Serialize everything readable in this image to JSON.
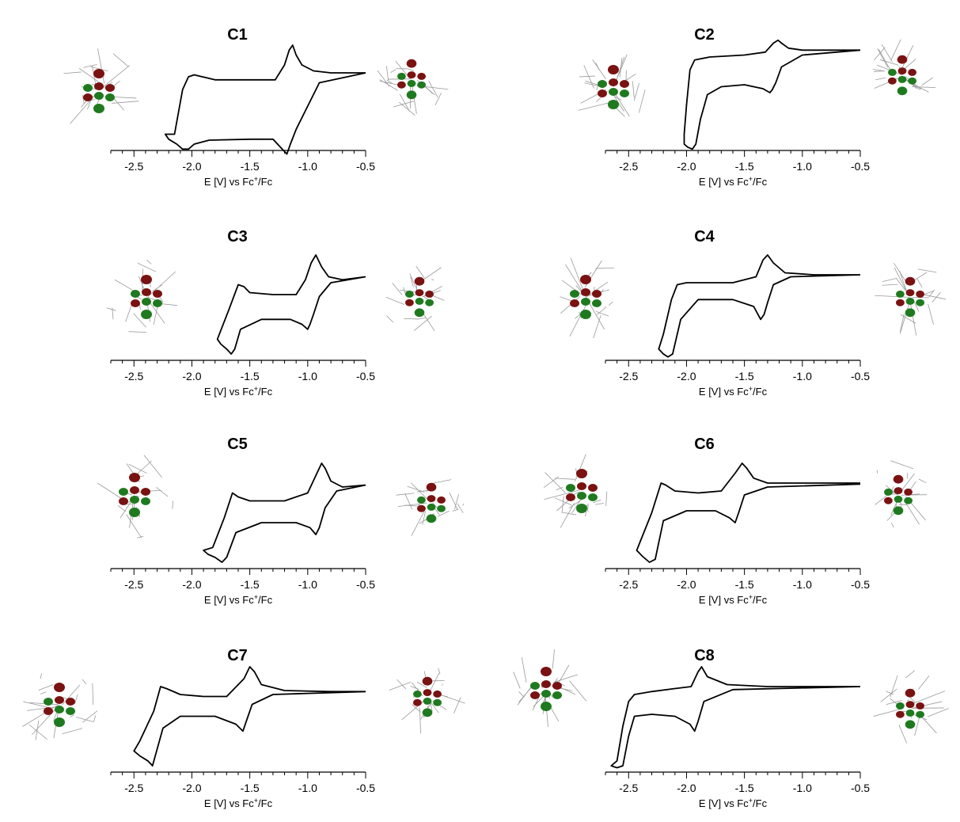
{
  "chart_data": [
    {
      "type": "line",
      "title": "C1",
      "xlabel": "E [V] vs Fc+/Fc",
      "xlim": [
        -2.7,
        -0.5
      ],
      "x_ticks": [
        "-2.5",
        "-2.0",
        "-1.5",
        "-1.0",
        "-0.5"
      ],
      "y_axis_visible": false,
      "grid": false,
      "series": [
        {
          "x": [
            -0.5,
            -0.8,
            -0.95,
            -1.05,
            -1.1,
            -1.13,
            -1.16,
            -1.2,
            -1.28,
            -1.5,
            -1.8,
            -1.98,
            -2.03,
            -2.08,
            -2.15,
            -2.23,
            -2.2,
            -2.13,
            -2.08,
            -2.03,
            -1.98,
            -1.85,
            -1.5,
            -1.3,
            -1.22,
            -1.18,
            -1.15,
            -1.1,
            -0.9,
            -0.5
          ],
          "y": [
            0.72,
            0.72,
            0.74,
            0.8,
            0.9,
            1.0,
            0.95,
            0.8,
            0.65,
            0.65,
            0.65,
            0.7,
            0.68,
            0.55,
            0.1,
            0.1,
            0.05,
            0.0,
            -0.05,
            -0.05,
            0.0,
            0.04,
            0.05,
            0.05,
            -0.05,
            -0.1,
            0.0,
            0.15,
            0.62,
            0.72
          ]
        }
      ],
      "inset_left": "HOMO isosurface (red/green lobes) on wireframe",
      "inset_right": "LUMO isosurface (red/green lobes) on wireframe"
    },
    {
      "type": "line",
      "title": "C2",
      "xlabel": "E [V] vs Fc+/Fc",
      "xlim": [
        -2.7,
        -0.5
      ],
      "x_ticks": [
        "-2.5",
        "-2.0",
        "-1.5",
        "-1.0",
        "-0.5"
      ],
      "y_axis_visible": false,
      "grid": false,
      "series": [
        {
          "x": [
            -0.5,
            -0.8,
            -1.0,
            -1.12,
            -1.18,
            -1.21,
            -1.25,
            -1.32,
            -1.5,
            -1.8,
            -1.93,
            -1.97,
            -2.0,
            -2.02,
            -2.02,
            -1.99,
            -1.95,
            -1.92,
            -1.88,
            -1.82,
            -1.7,
            -1.5,
            -1.34,
            -1.28,
            -1.26,
            -1.23,
            -1.18,
            -1.0,
            -0.5
          ],
          "y": [
            0.95,
            0.95,
            0.95,
            0.97,
            1.02,
            1.05,
            1.02,
            0.93,
            0.9,
            0.88,
            0.85,
            0.75,
            0.4,
            0.1,
            0.0,
            -0.03,
            -0.05,
            0.0,
            0.25,
            0.5,
            0.58,
            0.6,
            0.56,
            0.52,
            0.55,
            0.62,
            0.78,
            0.9,
            0.95
          ]
        }
      ],
      "inset_left": "HOMO isosurface (red/green lobes) on wireframe",
      "inset_right": "LUMO isosurface (red/green lobes) on wireframe"
    },
    {
      "type": "line",
      "title": "C3",
      "xlabel": "E [V] vs Fc+/Fc",
      "xlim": [
        -2.7,
        -0.5
      ],
      "x_ticks": [
        "-2.5",
        "-2.0",
        "-1.5",
        "-1.0",
        "-0.5"
      ],
      "y_axis_visible": false,
      "grid": false,
      "series": [
        {
          "x": [
            -0.5,
            -0.7,
            -0.82,
            -0.88,
            -0.93,
            -0.97,
            -1.02,
            -1.1,
            -1.3,
            -1.5,
            -1.55,
            -1.6,
            -1.68,
            -1.78,
            -1.75,
            -1.7,
            -1.66,
            -1.63,
            -1.58,
            -1.4,
            -1.15,
            -1.05,
            -1.0,
            -0.98,
            -0.95,
            -0.9,
            -0.8,
            -0.5
          ],
          "y": [
            0.78,
            0.75,
            0.78,
            0.88,
            1.0,
            0.92,
            0.75,
            0.6,
            0.6,
            0.62,
            0.68,
            0.7,
            0.45,
            0.15,
            0.1,
            0.05,
            0.0,
            0.05,
            0.25,
            0.35,
            0.35,
            0.3,
            0.25,
            0.3,
            0.4,
            0.58,
            0.72,
            0.78
          ]
        }
      ],
      "inset_left": "HOMO isosurface (red/green lobes) on wireframe",
      "inset_right": "LUMO isosurface (red/green lobes) on wireframe"
    },
    {
      "type": "line",
      "title": "C4",
      "xlabel": "E [V] vs Fc+/Fc",
      "xlim": [
        -2.7,
        -0.5
      ],
      "x_ticks": [
        "-2.5",
        "-2.0",
        "-1.5",
        "-1.0",
        "-0.5"
      ],
      "y_axis_visible": false,
      "grid": false,
      "series": [
        {
          "x": [
            -0.5,
            -0.9,
            -1.15,
            -1.25,
            -1.3,
            -1.34,
            -1.4,
            -1.6,
            -1.8,
            -2.0,
            -2.08,
            -2.13,
            -2.2,
            -2.24,
            -2.2,
            -2.16,
            -2.12,
            -2.05,
            -1.9,
            -1.6,
            -1.42,
            -1.36,
            -1.33,
            -1.3,
            -1.25,
            -1.1,
            -0.5
          ],
          "y": [
            0.8,
            0.8,
            0.82,
            0.92,
            1.0,
            0.95,
            0.78,
            0.72,
            0.72,
            0.72,
            0.7,
            0.55,
            0.2,
            0.05,
            0.0,
            -0.03,
            0.0,
            0.35,
            0.55,
            0.55,
            0.48,
            0.35,
            0.4,
            0.52,
            0.7,
            0.78,
            0.8
          ]
        }
      ],
      "inset_left": "HOMO isosurface (red/green lobes) on wireframe",
      "inset_right": "LUMO isosurface (red/green lobes) on wireframe"
    },
    {
      "type": "line",
      "title": "C5",
      "xlabel": "E [V] vs Fc+/Fc",
      "xlim": [
        -2.7,
        -0.5
      ],
      "x_ticks": [
        "-2.5",
        "-2.0",
        "-1.5",
        "-1.0",
        "-0.5"
      ],
      "y_axis_visible": false,
      "grid": false,
      "series": [
        {
          "x": [
            -0.5,
            -0.7,
            -0.8,
            -0.85,
            -0.88,
            -0.92,
            -1.0,
            -1.2,
            -1.5,
            -1.6,
            -1.65,
            -1.72,
            -1.82,
            -1.9,
            -1.86,
            -1.8,
            -1.74,
            -1.7,
            -1.62,
            -1.4,
            -1.1,
            -0.98,
            -0.93,
            -0.9,
            -0.85,
            -0.75,
            -0.5
          ],
          "y": [
            0.78,
            0.76,
            0.82,
            0.95,
            1.0,
            0.9,
            0.7,
            0.62,
            0.62,
            0.66,
            0.7,
            0.45,
            0.15,
            0.12,
            0.08,
            0.05,
            0.0,
            0.05,
            0.3,
            0.4,
            0.4,
            0.35,
            0.28,
            0.35,
            0.55,
            0.72,
            0.78
          ]
        }
      ],
      "inset_left": "HOMO isosurface (red/green lobes) on wireframe",
      "inset_right": "LUMO isosurface (red/green lobes) on wireframe"
    },
    {
      "type": "line",
      "title": "C6",
      "xlabel": "E [V] vs Fc+/Fc",
      "xlim": [
        -2.7,
        -0.5
      ],
      "x_ticks": [
        "-2.5",
        "-2.0",
        "-1.5",
        "-1.0",
        "-0.5"
      ],
      "y_axis_visible": false,
      "grid": false,
      "series": [
        {
          "x": [
            -0.5,
            -0.9,
            -1.3,
            -1.42,
            -1.48,
            -1.52,
            -1.58,
            -1.7,
            -1.9,
            -2.1,
            -2.18,
            -2.22,
            -2.3,
            -2.43,
            -2.38,
            -2.32,
            -2.27,
            -2.2,
            -2.0,
            -1.75,
            -1.63,
            -1.58,
            -1.55,
            -1.5,
            -1.3,
            -0.5
          ],
          "y": [
            0.8,
            0.8,
            0.8,
            0.85,
            0.95,
            1.0,
            0.9,
            0.72,
            0.7,
            0.72,
            0.78,
            0.8,
            0.5,
            0.12,
            0.06,
            0.0,
            0.03,
            0.42,
            0.52,
            0.52,
            0.45,
            0.4,
            0.5,
            0.68,
            0.76,
            0.79
          ]
        }
      ],
      "inset_left": "HOMO isosurface (red/green lobes) on wireframe",
      "inset_right": "LUMO isosurface (red/green lobes) on wireframe"
    },
    {
      "type": "line",
      "title": "C7",
      "xlabel": "E [V] vs Fc+/Fc",
      "xlim": [
        -2.7,
        -0.5
      ],
      "x_ticks": [
        "-2.5",
        "-2.0",
        "-1.5",
        "-1.0",
        "-0.5"
      ],
      "y_axis_visible": false,
      "grid": false,
      "series": [
        {
          "x": [
            -0.5,
            -0.8,
            -1.2,
            -1.4,
            -1.46,
            -1.5,
            -1.55,
            -1.7,
            -1.9,
            -2.1,
            -2.22,
            -2.27,
            -2.33,
            -2.45,
            -2.5,
            -2.45,
            -2.38,
            -2.34,
            -2.25,
            -2.1,
            -1.8,
            -1.62,
            -1.56,
            -1.53,
            -1.48,
            -1.3,
            -0.5
          ],
          "y": [
            0.75,
            0.75,
            0.76,
            0.82,
            0.95,
            1.0,
            0.88,
            0.7,
            0.7,
            0.72,
            0.78,
            0.8,
            0.55,
            0.25,
            0.15,
            0.1,
            0.05,
            0.0,
            0.38,
            0.5,
            0.5,
            0.42,
            0.35,
            0.45,
            0.62,
            0.72,
            0.75
          ]
        }
      ],
      "inset_left": "HOMO isosurface (red/green lobes) on wireframe",
      "inset_right": "LUMO isosurface (red/green lobes) on wireframe"
    },
    {
      "type": "line",
      "title": "C8",
      "xlabel": "E [V] vs Fc+/Fc",
      "xlim": [
        -2.7,
        -0.5
      ],
      "x_ticks": [
        "-2.5",
        "-2.0",
        "-1.5",
        "-1.0",
        "-0.5"
      ],
      "y_axis_visible": false,
      "grid": false,
      "series": [
        {
          "x": [
            -0.5,
            -0.9,
            -1.3,
            -1.65,
            -1.82,
            -1.87,
            -1.9,
            -1.96,
            -2.1,
            -2.3,
            -2.45,
            -2.5,
            -2.55,
            -2.6,
            -2.65,
            -2.6,
            -2.55,
            -2.5,
            -2.45,
            -2.3,
            -2.1,
            -1.97,
            -1.93,
            -1.9,
            -1.85,
            -1.6,
            -0.5
          ],
          "y": [
            0.8,
            0.8,
            0.8,
            0.82,
            0.9,
            1.0,
            0.95,
            0.8,
            0.78,
            0.75,
            0.72,
            0.65,
            0.4,
            0.05,
            0.0,
            -0.02,
            0.0,
            0.3,
            0.5,
            0.52,
            0.5,
            0.42,
            0.35,
            0.45,
            0.65,
            0.77,
            0.8
          ]
        }
      ],
      "inset_left": "HOMO isosurface (red/green lobes) on wireframe",
      "inset_right": "LUMO isosurface (red/green lobes) on wireframe"
    }
  ],
  "colors": {
    "curve": "#000000",
    "lobe_red": "#7a1212",
    "lobe_green": "#1f7a1f",
    "wireframe": "#9a9a9a"
  }
}
